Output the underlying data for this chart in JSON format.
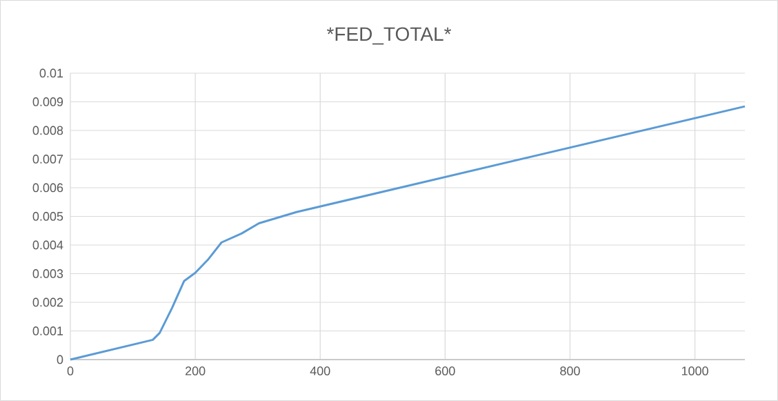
{
  "chart_data": {
    "type": "line",
    "title": "*FED_TOTAL*",
    "series": [
      {
        "color": "#5b9bd5",
        "x": [
          0,
          132,
          143,
          163,
          182,
          200,
          220,
          242,
          274,
          302,
          362,
          1080
        ],
        "values": [
          0,
          0.00069,
          0.00093,
          0.00181,
          0.00274,
          0.00303,
          0.00348,
          0.00409,
          0.0044,
          0.00476,
          0.00515,
          0.00884
        ]
      }
    ],
    "xlim": [
      0,
      1080
    ],
    "xticks": [
      0,
      200,
      400,
      600,
      800,
      1000
    ],
    "ylim": [
      0,
      0.01
    ],
    "yticks": [
      0,
      0.001,
      0.002,
      0.003,
      0.004,
      0.005,
      0.006,
      0.007,
      0.008,
      0.009,
      0.01
    ],
    "grid": true,
    "marker": "none",
    "line_style": "solid"
  }
}
